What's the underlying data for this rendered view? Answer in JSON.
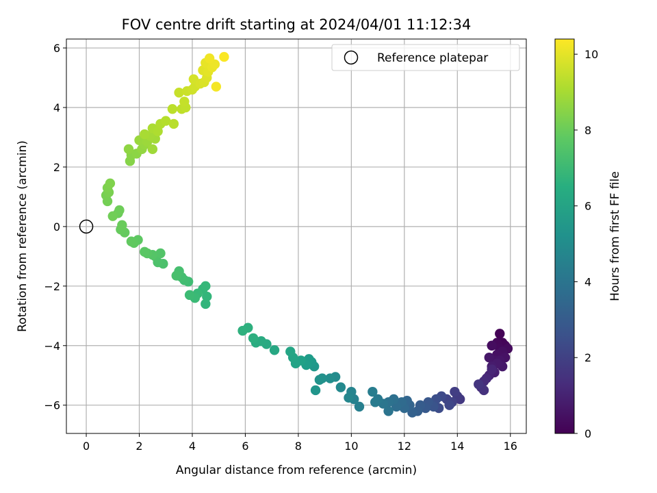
{
  "chart_data": {
    "type": "scatter",
    "title": "FOV centre drift starting at 2024/04/01 11:12:34",
    "xlabel": "Angular distance from reference (arcmin)",
    "ylabel": "Rotation from reference (arcmin)",
    "xlim": [
      -0.75,
      16.6
    ],
    "ylim": [
      -6.95,
      6.3
    ],
    "x_ticks": [
      0,
      2,
      4,
      6,
      8,
      10,
      12,
      14,
      16
    ],
    "y_ticks": [
      -6,
      -4,
      -2,
      0,
      2,
      4,
      6
    ],
    "grid": true,
    "legend": {
      "placement": "top-right",
      "entries": [
        "Reference platepar"
      ]
    },
    "reference_point": {
      "x": 0,
      "y": 0,
      "label": "Reference platepar"
    },
    "colorbar": {
      "label": "Hours from first FF file",
      "range": [
        0,
        10.4
      ],
      "ticks": [
        0,
        2,
        4,
        6,
        8,
        10
      ],
      "colormap": "viridis"
    },
    "points": [
      {
        "x": 15.6,
        "y": -3.6,
        "c": 0.05
      },
      {
        "x": 15.7,
        "y": -3.9,
        "c": 0.1
      },
      {
        "x": 15.8,
        "y": -4.0,
        "c": 0.15
      },
      {
        "x": 15.5,
        "y": -3.9,
        "c": 0.2
      },
      {
        "x": 15.6,
        "y": -4.1,
        "c": 0.25
      },
      {
        "x": 15.9,
        "y": -4.1,
        "c": 0.3
      },
      {
        "x": 15.3,
        "y": -4.0,
        "c": 0.35
      },
      {
        "x": 15.7,
        "y": -4.2,
        "c": 0.4
      },
      {
        "x": 15.5,
        "y": -4.3,
        "c": 0.45
      },
      {
        "x": 15.8,
        "y": -4.4,
        "c": 0.5
      },
      {
        "x": 15.4,
        "y": -4.5,
        "c": 0.55
      },
      {
        "x": 15.6,
        "y": -4.5,
        "c": 0.6
      },
      {
        "x": 15.2,
        "y": -4.4,
        "c": 0.65
      },
      {
        "x": 15.7,
        "y": -4.7,
        "c": 0.7
      },
      {
        "x": 15.5,
        "y": -4.6,
        "c": 0.75
      },
      {
        "x": 15.3,
        "y": -4.7,
        "c": 0.8
      },
      {
        "x": 15.4,
        "y": -4.9,
        "c": 0.9
      },
      {
        "x": 15.2,
        "y": -5.0,
        "c": 1.0
      },
      {
        "x": 15.3,
        "y": -4.8,
        "c": 1.1
      },
      {
        "x": 15.1,
        "y": -5.1,
        "c": 1.2
      },
      {
        "x": 15.0,
        "y": -5.2,
        "c": 1.3
      },
      {
        "x": 14.9,
        "y": -5.4,
        "c": 1.4
      },
      {
        "x": 15.0,
        "y": -5.5,
        "c": 1.5
      },
      {
        "x": 14.8,
        "y": -5.3,
        "c": 1.6
      },
      {
        "x": 14.1,
        "y": -5.8,
        "c": 1.7
      },
      {
        "x": 14.0,
        "y": -5.7,
        "c": 1.8
      },
      {
        "x": 13.9,
        "y": -5.55,
        "c": 1.9
      },
      {
        "x": 13.8,
        "y": -5.9,
        "c": 2.0
      },
      {
        "x": 13.6,
        "y": -5.8,
        "c": 2.1
      },
      {
        "x": 13.7,
        "y": -6.0,
        "c": 2.2
      },
      {
        "x": 13.4,
        "y": -5.7,
        "c": 2.3
      },
      {
        "x": 13.3,
        "y": -6.1,
        "c": 2.4
      },
      {
        "x": 13.2,
        "y": -5.8,
        "c": 2.5
      },
      {
        "x": 13.0,
        "y": -5.95,
        "c": 2.6
      },
      {
        "x": 13.1,
        "y": -6.05,
        "c": 2.7
      },
      {
        "x": 12.9,
        "y": -5.9,
        "c": 2.8
      },
      {
        "x": 12.8,
        "y": -6.1,
        "c": 2.9
      },
      {
        "x": 12.6,
        "y": -6.0,
        "c": 3.0
      },
      {
        "x": 12.5,
        "y": -6.2,
        "c": 3.1
      },
      {
        "x": 12.3,
        "y": -6.25,
        "c": 3.2
      },
      {
        "x": 12.2,
        "y": -6.0,
        "c": 3.3
      },
      {
        "x": 12.1,
        "y": -5.85,
        "c": 3.4
      },
      {
        "x": 12.0,
        "y": -6.1,
        "c": 3.5
      },
      {
        "x": 11.9,
        "y": -5.9,
        "c": 3.6
      },
      {
        "x": 11.7,
        "y": -6.05,
        "c": 3.7
      },
      {
        "x": 11.6,
        "y": -5.8,
        "c": 3.8
      },
      {
        "x": 11.4,
        "y": -5.9,
        "c": 3.9
      },
      {
        "x": 11.4,
        "y": -6.2,
        "c": 4.0
      },
      {
        "x": 11.2,
        "y": -5.95,
        "c": 4.1
      },
      {
        "x": 11.0,
        "y": -5.8,
        "c": 4.2
      },
      {
        "x": 10.9,
        "y": -5.9,
        "c": 4.3
      },
      {
        "x": 10.8,
        "y": -5.55,
        "c": 4.4
      },
      {
        "x": 10.3,
        "y": -6.05,
        "c": 4.5
      },
      {
        "x": 10.1,
        "y": -5.8,
        "c": 4.6
      },
      {
        "x": 10.0,
        "y": -5.55,
        "c": 4.7
      },
      {
        "x": 9.9,
        "y": -5.75,
        "c": 4.8
      },
      {
        "x": 9.6,
        "y": -5.4,
        "c": 4.9
      },
      {
        "x": 9.4,
        "y": -5.05,
        "c": 5.0
      },
      {
        "x": 9.2,
        "y": -5.1,
        "c": 5.1
      },
      {
        "x": 8.9,
        "y": -5.1,
        "c": 5.2
      },
      {
        "x": 8.8,
        "y": -5.15,
        "c": 5.3
      },
      {
        "x": 8.65,
        "y": -5.5,
        "c": 5.4
      },
      {
        "x": 8.6,
        "y": -4.7,
        "c": 5.5
      },
      {
        "x": 8.5,
        "y": -4.55,
        "c": 5.6
      },
      {
        "x": 8.4,
        "y": -4.45,
        "c": 5.7
      },
      {
        "x": 8.3,
        "y": -4.65,
        "c": 5.8
      },
      {
        "x": 8.1,
        "y": -4.5,
        "c": 5.9
      },
      {
        "x": 7.9,
        "y": -4.6,
        "c": 6.0
      },
      {
        "x": 7.8,
        "y": -4.4,
        "c": 6.05
      },
      {
        "x": 7.7,
        "y": -4.2,
        "c": 6.1
      },
      {
        "x": 7.1,
        "y": -4.15,
        "c": 6.2
      },
      {
        "x": 6.8,
        "y": -3.95,
        "c": 6.3
      },
      {
        "x": 6.6,
        "y": -3.85,
        "c": 6.35
      },
      {
        "x": 6.4,
        "y": -3.9,
        "c": 6.4
      },
      {
        "x": 6.3,
        "y": -3.75,
        "c": 6.5
      },
      {
        "x": 6.1,
        "y": -3.4,
        "c": 6.55
      },
      {
        "x": 5.9,
        "y": -3.5,
        "c": 6.6
      },
      {
        "x": 4.5,
        "y": -2.6,
        "c": 6.8
      },
      {
        "x": 4.55,
        "y": -2.35,
        "c": 6.85
      },
      {
        "x": 4.4,
        "y": -2.1,
        "c": 6.9
      },
      {
        "x": 4.5,
        "y": -2.0,
        "c": 6.95
      },
      {
        "x": 4.2,
        "y": -2.25,
        "c": 7.0
      },
      {
        "x": 4.1,
        "y": -2.4,
        "c": 7.05
      },
      {
        "x": 3.9,
        "y": -2.3,
        "c": 7.1
      },
      {
        "x": 3.85,
        "y": -1.85,
        "c": 7.15
      },
      {
        "x": 3.7,
        "y": -1.8,
        "c": 7.2
      },
      {
        "x": 3.6,
        "y": -1.7,
        "c": 7.25
      },
      {
        "x": 3.5,
        "y": -1.5,
        "c": 7.3
      },
      {
        "x": 3.4,
        "y": -1.65,
        "c": 7.35
      },
      {
        "x": 2.9,
        "y": -1.25,
        "c": 7.4
      },
      {
        "x": 2.7,
        "y": -1.2,
        "c": 7.45
      },
      {
        "x": 2.6,
        "y": -1.0,
        "c": 7.5
      },
      {
        "x": 2.8,
        "y": -0.9,
        "c": 7.55
      },
      {
        "x": 2.5,
        "y": -0.95,
        "c": 7.6
      },
      {
        "x": 2.3,
        "y": -0.9,
        "c": 7.65
      },
      {
        "x": 2.2,
        "y": -0.85,
        "c": 7.7
      },
      {
        "x": 1.95,
        "y": -0.45,
        "c": 7.75
      },
      {
        "x": 1.8,
        "y": -0.55,
        "c": 7.8
      },
      {
        "x": 1.7,
        "y": -0.5,
        "c": 7.85
      },
      {
        "x": 1.45,
        "y": -0.2,
        "c": 7.9
      },
      {
        "x": 1.3,
        "y": -0.1,
        "c": 7.95
      },
      {
        "x": 1.35,
        "y": 0.05,
        "c": 8.0
      },
      {
        "x": 1.2,
        "y": 0.45,
        "c": 8.05
      },
      {
        "x": 1.25,
        "y": 0.55,
        "c": 8.1
      },
      {
        "x": 1.0,
        "y": 0.35,
        "c": 8.15
      },
      {
        "x": 0.8,
        "y": 0.85,
        "c": 8.2
      },
      {
        "x": 0.75,
        "y": 1.05,
        "c": 8.25
      },
      {
        "x": 0.85,
        "y": 1.15,
        "c": 8.3
      },
      {
        "x": 0.8,
        "y": 1.3,
        "c": 8.35
      },
      {
        "x": 0.9,
        "y": 1.45,
        "c": 8.4
      },
      {
        "x": 1.65,
        "y": 2.2,
        "c": 8.5
      },
      {
        "x": 1.7,
        "y": 2.4,
        "c": 8.55
      },
      {
        "x": 1.9,
        "y": 2.45,
        "c": 8.6
      },
      {
        "x": 1.6,
        "y": 2.6,
        "c": 8.65
      },
      {
        "x": 2.1,
        "y": 2.6,
        "c": 8.7
      },
      {
        "x": 2.2,
        "y": 2.75,
        "c": 8.75
      },
      {
        "x": 2.0,
        "y": 2.9,
        "c": 8.8
      },
      {
        "x": 2.3,
        "y": 2.85,
        "c": 8.85
      },
      {
        "x": 2.5,
        "y": 2.6,
        "c": 8.9
      },
      {
        "x": 2.6,
        "y": 2.95,
        "c": 8.95
      },
      {
        "x": 2.4,
        "y": 3.05,
        "c": 9.0
      },
      {
        "x": 2.2,
        "y": 3.1,
        "c": 9.05
      },
      {
        "x": 2.5,
        "y": 3.3,
        "c": 9.1
      },
      {
        "x": 2.7,
        "y": 3.2,
        "c": 9.15
      },
      {
        "x": 2.8,
        "y": 3.45,
        "c": 9.2
      },
      {
        "x": 3.0,
        "y": 3.55,
        "c": 9.25
      },
      {
        "x": 3.3,
        "y": 3.45,
        "c": 9.3
      },
      {
        "x": 3.25,
        "y": 3.95,
        "c": 9.35
      },
      {
        "x": 3.6,
        "y": 3.95,
        "c": 9.4
      },
      {
        "x": 3.75,
        "y": 4.0,
        "c": 9.45
      },
      {
        "x": 3.7,
        "y": 4.2,
        "c": 9.5
      },
      {
        "x": 3.5,
        "y": 4.5,
        "c": 9.55
      },
      {
        "x": 3.8,
        "y": 4.55,
        "c": 9.6
      },
      {
        "x": 4.0,
        "y": 4.6,
        "c": 9.65
      },
      {
        "x": 4.1,
        "y": 4.7,
        "c": 9.7
      },
      {
        "x": 4.05,
        "y": 4.95,
        "c": 9.75
      },
      {
        "x": 4.3,
        "y": 4.8,
        "c": 9.8
      },
      {
        "x": 4.45,
        "y": 4.85,
        "c": 9.85
      },
      {
        "x": 4.55,
        "y": 5.0,
        "c": 9.9
      },
      {
        "x": 4.4,
        "y": 5.25,
        "c": 9.95
      },
      {
        "x": 4.6,
        "y": 5.2,
        "c": 10.0
      },
      {
        "x": 4.5,
        "y": 5.5,
        "c": 10.05
      },
      {
        "x": 4.75,
        "y": 5.35,
        "c": 10.1
      },
      {
        "x": 4.85,
        "y": 5.45,
        "c": 10.15
      },
      {
        "x": 4.65,
        "y": 5.65,
        "c": 10.2
      },
      {
        "x": 4.9,
        "y": 4.7,
        "c": 10.25
      },
      {
        "x": 5.2,
        "y": 5.7,
        "c": 10.35
      }
    ]
  }
}
